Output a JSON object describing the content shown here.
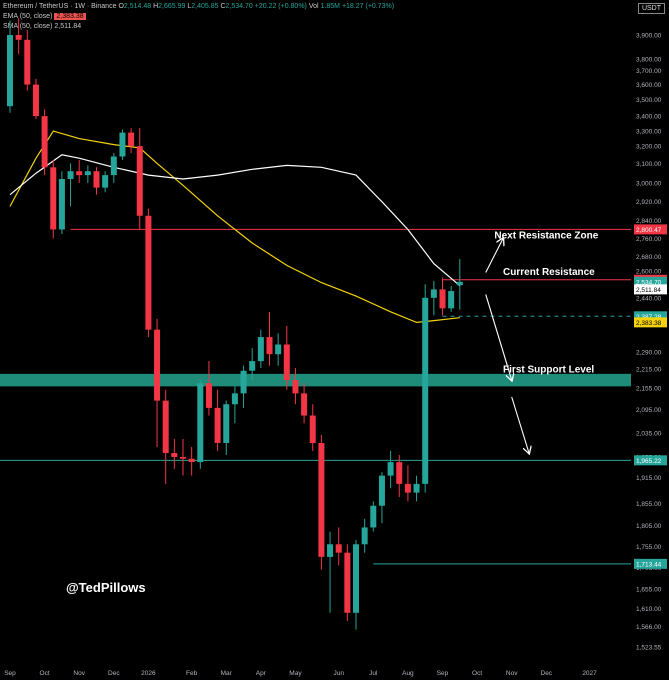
{
  "header": {
    "symbol": "Ethereum / TetherUS · 1W · Binance",
    "o_label": "O",
    "o_val": "2,514.48",
    "h_label": "H",
    "h_val": "2,665.99",
    "l_label": "L",
    "l_val": "2,405.85",
    "c_label": "C",
    "c_val": "2,534.70",
    "change": "+20.22 (+0.80%)",
    "vol_label": "Vol",
    "vol_val": "1.85M",
    "vol_change": "+18.27 (+0.73%)",
    "ema_label": "EMA (50, close)",
    "ema_val": "2,383.38",
    "sma_label": "SMA (50, close)",
    "sma_val": "2,511.84",
    "currency": "USDT"
  },
  "watermark": "@TedPillows",
  "colors": {
    "up": "#26a69a",
    "down": "#f23645",
    "ema": "#f5d20b",
    "sma": "#ffffff",
    "resistance": "#f23645",
    "support": "#1e8c78",
    "bg": "#000000",
    "axis_text": "#b2b5be"
  },
  "chart_data": {
    "type": "candlestick",
    "y_axis": {
      "ticks": [
        3900,
        3800,
        3700,
        3600,
        3500,
        3400,
        3300,
        3200,
        3100,
        3000,
        2920,
        2840,
        2760,
        2680,
        2600,
        2520,
        2440,
        2365,
        2290,
        2215,
        2155,
        2095,
        2035,
        1975,
        1915,
        1855,
        1805,
        1755,
        1705,
        1655,
        1610,
        1566,
        1523.55
      ],
      "tick_labels": [
        "3,900.00",
        "3,800.00",
        "3,700.00",
        "3,600.00",
        "3,500.00",
        "3,400.00",
        "3,300.00",
        "3,200.00",
        "3,100.00",
        "3,000.00",
        "2,920.00",
        "2,840.00",
        "2,760.00",
        "2,680.00",
        "2,600.00",
        "2,520.00",
        "2,440.00",
        "2,365.00",
        "2,290.00",
        "2,215.00",
        "2,155.00",
        "2,095.00",
        "2,035.00",
        "1,975.00",
        "1,915.00",
        "1,855.00",
        "1,805.00",
        "1,755.00",
        "1,705.00",
        "1,655.00",
        "1,610.00",
        "1,566.00",
        "1,523.55"
      ]
    },
    "x_axis": {
      "labels": [
        "Sep",
        "Oct",
        "Nov",
        "Dec",
        "2026",
        "Feb",
        "Mar",
        "Apr",
        "May",
        "Jun",
        "Jul",
        "Aug",
        "Sep",
        "Oct",
        "Nov",
        "Dec",
        "2027"
      ],
      "label_week_index": [
        0,
        4,
        8,
        12,
        16,
        21,
        25,
        29,
        33,
        38,
        42,
        46,
        50,
        54,
        58,
        62,
        67
      ]
    },
    "candles": [
      {
        "o": 3460,
        "h": 3960,
        "l": 3420,
        "c": 3900
      },
      {
        "o": 3900,
        "h": 3970,
        "l": 3820,
        "c": 3880
      },
      {
        "o": 3880,
        "h": 3920,
        "l": 3560,
        "c": 3600
      },
      {
        "o": 3600,
        "h": 3640,
        "l": 3380,
        "c": 3400
      },
      {
        "o": 3400,
        "h": 3440,
        "l": 3040,
        "c": 3080
      },
      {
        "o": 3080,
        "h": 3120,
        "l": 2760,
        "c": 2800
      },
      {
        "o": 2800,
        "h": 3060,
        "l": 2780,
        "c": 3020
      },
      {
        "o": 3020,
        "h": 3100,
        "l": 2900,
        "c": 3060
      },
      {
        "o": 3060,
        "h": 3120,
        "l": 3000,
        "c": 3040
      },
      {
        "o": 3040,
        "h": 3090,
        "l": 3000,
        "c": 3060
      },
      {
        "o": 3060,
        "h": 3080,
        "l": 2950,
        "c": 2980
      },
      {
        "o": 2980,
        "h": 3060,
        "l": 2960,
        "c": 3040
      },
      {
        "o": 3040,
        "h": 3160,
        "l": 3000,
        "c": 3140
      },
      {
        "o": 3140,
        "h": 3310,
        "l": 3120,
        "c": 3290
      },
      {
        "o": 3290,
        "h": 3320,
        "l": 3160,
        "c": 3200
      },
      {
        "o": 3200,
        "h": 3320,
        "l": 2800,
        "c": 2860
      },
      {
        "o": 2860,
        "h": 2890,
        "l": 2330,
        "c": 2350
      },
      {
        "o": 2350,
        "h": 2380,
        "l": 2000,
        "c": 2120
      },
      {
        "o": 2120,
        "h": 2150,
        "l": 1900,
        "c": 1985
      },
      {
        "o": 1985,
        "h": 2020,
        "l": 1940,
        "c": 1975
      },
      {
        "o": 1975,
        "h": 2020,
        "l": 1920,
        "c": 1970
      },
      {
        "o": 1970,
        "h": 2000,
        "l": 1920,
        "c": 1960
      },
      {
        "o": 1960,
        "h": 2180,
        "l": 1940,
        "c": 2170
      },
      {
        "o": 2170,
        "h": 2250,
        "l": 2080,
        "c": 2100
      },
      {
        "o": 2100,
        "h": 2150,
        "l": 1990,
        "c": 2010
      },
      {
        "o": 2010,
        "h": 2120,
        "l": 1980,
        "c": 2110
      },
      {
        "o": 2110,
        "h": 2160,
        "l": 2060,
        "c": 2140
      },
      {
        "o": 2140,
        "h": 2230,
        "l": 2100,
        "c": 2210
      },
      {
        "o": 2210,
        "h": 2300,
        "l": 2180,
        "c": 2250
      },
      {
        "o": 2250,
        "h": 2350,
        "l": 2220,
        "c": 2330
      },
      {
        "o": 2330,
        "h": 2400,
        "l": 2230,
        "c": 2280
      },
      {
        "o": 2280,
        "h": 2340,
        "l": 2230,
        "c": 2310
      },
      {
        "o": 2310,
        "h": 2360,
        "l": 2150,
        "c": 2180
      },
      {
        "o": 2180,
        "h": 2220,
        "l": 2110,
        "c": 2140
      },
      {
        "o": 2140,
        "h": 2170,
        "l": 2060,
        "c": 2080
      },
      {
        "o": 2080,
        "h": 2110,
        "l": 1990,
        "c": 2010
      },
      {
        "o": 2010,
        "h": 2030,
        "l": 1700,
        "c": 1730
      },
      {
        "o": 1730,
        "h": 1790,
        "l": 1600,
        "c": 1760
      },
      {
        "o": 1760,
        "h": 1800,
        "l": 1710,
        "c": 1740
      },
      {
        "o": 1740,
        "h": 1760,
        "l": 1580,
        "c": 1600
      },
      {
        "o": 1600,
        "h": 1770,
        "l": 1560,
        "c": 1760
      },
      {
        "o": 1760,
        "h": 1820,
        "l": 1740,
        "c": 1800
      },
      {
        "o": 1800,
        "h": 1860,
        "l": 1790,
        "c": 1850
      },
      {
        "o": 1850,
        "h": 1930,
        "l": 1810,
        "c": 1920
      },
      {
        "o": 1920,
        "h": 1990,
        "l": 1890,
        "c": 1960
      },
      {
        "o": 1960,
        "h": 1980,
        "l": 1870,
        "c": 1900
      },
      {
        "o": 1900,
        "h": 1950,
        "l": 1860,
        "c": 1880
      },
      {
        "o": 1880,
        "h": 1920,
        "l": 1860,
        "c": 1900
      },
      {
        "o": 1900,
        "h": 2520,
        "l": 1880,
        "c": 2440
      },
      {
        "o": 2440,
        "h": 2540,
        "l": 2390,
        "c": 2490
      },
      {
        "o": 2490,
        "h": 2560,
        "l": 2390,
        "c": 2410
      },
      {
        "o": 2410,
        "h": 2510,
        "l": 2400,
        "c": 2480
      },
      {
        "o": 2514.48,
        "h": 2665.99,
        "l": 2405.85,
        "c": 2534.7
      }
    ],
    "series": [
      {
        "name": "EMA (50, close)",
        "points": [
          [
            0,
            2900
          ],
          [
            3,
            3130
          ],
          [
            5,
            3300
          ],
          [
            8,
            3250
          ],
          [
            12,
            3210
          ],
          [
            15,
            3190
          ],
          [
            17,
            3100
          ],
          [
            20,
            2990
          ],
          [
            24,
            2860
          ],
          [
            28,
            2740
          ],
          [
            32,
            2630
          ],
          [
            36,
            2530
          ],
          [
            40,
            2450
          ],
          [
            44,
            2400
          ],
          [
            47,
            2370
          ],
          [
            49,
            2375
          ],
          [
            52,
            2383.38
          ]
        ]
      },
      {
        "name": "SMA (50, close)",
        "points": [
          [
            0,
            2950
          ],
          [
            3,
            3050
          ],
          [
            6,
            3150
          ],
          [
            8,
            3130
          ],
          [
            12,
            3080
          ],
          [
            16,
            3040
          ],
          [
            20,
            3020
          ],
          [
            24,
            3040
          ],
          [
            28,
            3070
          ],
          [
            32,
            3090
          ],
          [
            36,
            3080
          ],
          [
            40,
            3040
          ],
          [
            43,
            2920
          ],
          [
            46,
            2800
          ],
          [
            49,
            2640
          ],
          [
            52,
            2511.84
          ]
        ]
      }
    ],
    "horizontal_levels": [
      {
        "label": "Next Resistance Zone",
        "price": 2800.47,
        "from_week": 7,
        "style": "solid",
        "color": "#f23645"
      },
      {
        "label": "Current Resistance",
        "price": 2546.78,
        "from_week": 50,
        "style": "solid",
        "color": "#f23645"
      },
      {
        "label": "",
        "price": 2387.28,
        "from_week": 50,
        "style": "dashed",
        "color": "#26a69a"
      },
      {
        "label": "First Support Level",
        "price": 2180,
        "band_low": 2160,
        "band_high": 2200,
        "from_week": 0,
        "style": "band",
        "color": "#1e8c78"
      },
      {
        "label": "",
        "price": 1965.22,
        "from_week": 0,
        "style": "solid",
        "color": "#26a69a"
      },
      {
        "label": "",
        "price": 1713.44,
        "from_week": 42,
        "style": "solid",
        "color": "#26a69a"
      }
    ],
    "price_badges": [
      {
        "text": "2,800.47",
        "price": 2800.47,
        "bg": "#f23645",
        "fg": "#ffffff"
      },
      {
        "text": "2,546.78",
        "price": 2546.78,
        "bg": "#f23645",
        "fg": "#ffffff"
      },
      {
        "text": "2,534.70",
        "price": 2534.7,
        "bg": "#26a69a",
        "fg": "#ffffff",
        "sub": "1d 16h"
      },
      {
        "text": "2,511.84",
        "price": 2490,
        "bg": "#ffffff",
        "fg": "#000000"
      },
      {
        "text": "2,387.28",
        "price": 2387.28,
        "bg": "#26a69a",
        "fg": "#ffffff"
      },
      {
        "text": "2,383.38",
        "price": 2370,
        "bg": "#f5d20b",
        "fg": "#000000"
      },
      {
        "text": "1,965.22",
        "price": 1965.22,
        "bg": "#26a69a",
        "fg": "#ffffff"
      },
      {
        "text": "1,713.44",
        "price": 1713.44,
        "bg": "#26a69a",
        "fg": "#ffffff"
      }
    ],
    "annotations": [
      {
        "text": "Next Resistance Zone",
        "price": 2760,
        "week": 56
      },
      {
        "text": "Current Resistance",
        "price": 2575,
        "week": 57
      },
      {
        "text": "First Support Level",
        "price": 2205,
        "week": 57
      }
    ],
    "arrows": [
      {
        "from": [
          55,
          2590
        ],
        "to": [
          57,
          2760
        ]
      },
      {
        "from": [
          55,
          2460
        ],
        "to": [
          58,
          2180
        ]
      },
      {
        "from": [
          58,
          2130
        ],
        "to": [
          60,
          1985
        ]
      }
    ]
  }
}
